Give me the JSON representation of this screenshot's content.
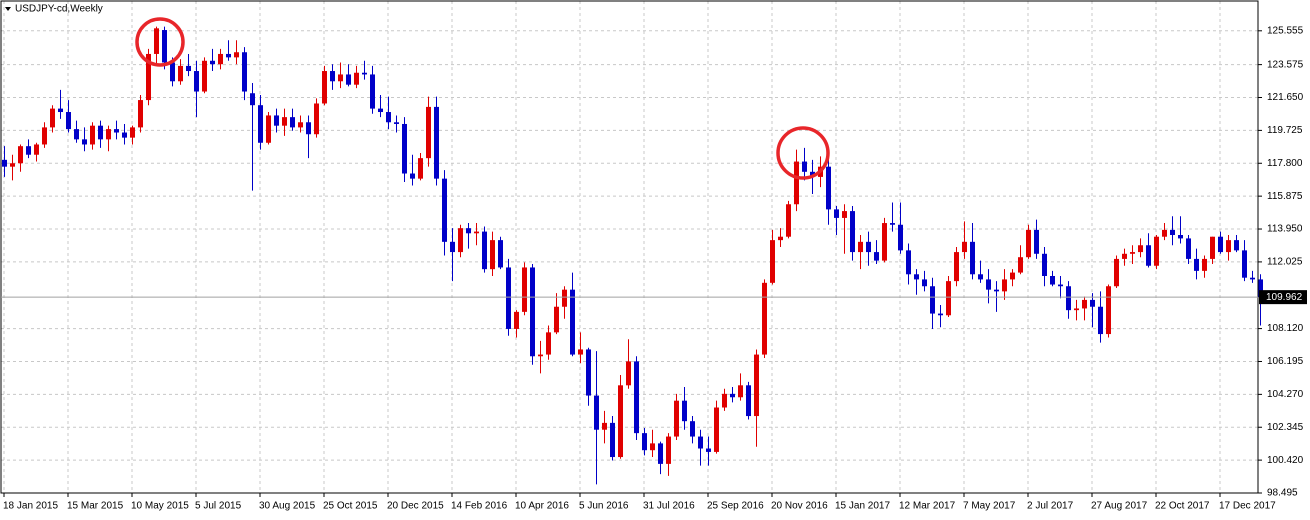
{
  "chart_data": {
    "type": "candlestick",
    "title": "USDJPY-cd,Weekly",
    "up_color": "#e00000",
    "down_color": "#0000c8",
    "grid": true,
    "ylim": [
      98.495,
      127.3
    ],
    "yticks": [
      125.555,
      123.575,
      {
        "value": 121.65,
        "label": "121.650"
      },
      119.725,
      {
        "value": 117.8,
        "label": "117.800"
      },
      115.875,
      {
        "value": 113.95,
        "label": "113.950"
      },
      112.025,
      {
        "value": 108.12,
        "label": "108.120"
      },
      106.195,
      {
        "value": 104.27,
        "label": "104.270"
      },
      102.345,
      {
        "value": 100.42,
        "label": "100.420"
      },
      98.495
    ],
    "categories": [
      "18 Jan 2015",
      null,
      null,
      null,
      null,
      null,
      null,
      null,
      "15 Mar 2015",
      null,
      null,
      null,
      null,
      null,
      null,
      null,
      "10 May 2015",
      null,
      null,
      null,
      null,
      null,
      null,
      null,
      "5 Jul 2015",
      null,
      null,
      null,
      null,
      null,
      null,
      null,
      "30 Aug 2015",
      null,
      null,
      null,
      null,
      null,
      null,
      null,
      "25 Oct 2015",
      null,
      null,
      null,
      null,
      null,
      null,
      null,
      "20 Dec 2015",
      null,
      null,
      null,
      null,
      null,
      null,
      null,
      "14 Feb 2016",
      null,
      null,
      null,
      null,
      null,
      null,
      null,
      "10 Apr 2016",
      null,
      null,
      null,
      null,
      null,
      null,
      null,
      "5 Jun 2016",
      null,
      null,
      null,
      null,
      null,
      null,
      null,
      "31 Jul 2016",
      null,
      null,
      null,
      null,
      null,
      null,
      null,
      "25 Sep 2016",
      null,
      null,
      null,
      null,
      null,
      null,
      null,
      "20 Nov 2016",
      null,
      null,
      null,
      null,
      null,
      null,
      null,
      "15 Jan 2017",
      null,
      null,
      null,
      null,
      null,
      null,
      null,
      "12 Mar 2017",
      null,
      null,
      null,
      null,
      null,
      null,
      null,
      "7 May 2017",
      null,
      null,
      null,
      null,
      null,
      null,
      null,
      "2 Jul 2017",
      null,
      null,
      null,
      null,
      null,
      null,
      null,
      "27 Aug 2017",
      null,
      null,
      null,
      null,
      null,
      null,
      null,
      "22 Oct 2017",
      null,
      null,
      null,
      null,
      null,
      null,
      null,
      "17 Dec 2017",
      null,
      null,
      null,
      null,
      null
    ],
    "open": [
      118.0,
      117.6,
      117.8,
      118.8,
      118.3,
      118.9,
      119.9,
      121.0,
      120.8,
      119.8,
      119.2,
      118.9,
      120.0,
      119.2,
      119.8,
      119.6,
      119.3,
      119.9,
      121.5,
      124.2,
      125.6,
      123.7,
      122.6,
      123.5,
      123.2,
      122.0,
      123.8,
      123.6,
      124.2,
      124.0,
      124.3,
      121.9,
      121.2,
      119.0,
      120.6,
      120.0,
      120.5,
      119.9,
      120.2,
      119.5,
      121.3,
      123.2,
      122.6,
      123.0,
      122.4,
      123.1,
      123.0,
      121.0,
      120.8,
      120.2,
      120.1,
      117.2,
      116.9,
      118.1,
      121.1,
      116.9,
      113.2,
      112.6,
      114.0,
      113.7,
      113.8,
      111.6,
      113.3,
      111.7,
      108.1,
      109.1,
      111.7,
      106.5,
      106.6,
      107.9,
      109.4,
      110.4,
      106.6,
      106.9,
      104.2,
      102.2,
      102.6,
      100.6,
      104.8,
      106.2,
      102.0,
      101.0,
      101.4,
      100.2,
      101.8,
      103.9,
      102.7,
      101.8,
      101.1,
      100.9,
      103.5,
      104.3,
      104.1,
      104.8,
      103.0,
      106.6,
      110.8,
      113.3,
      113.5,
      115.4,
      117.9,
      117.3,
      117.0,
      117.6,
      115.1,
      114.6,
      115.0,
      112.6,
      113.2,
      112.6,
      112.1,
      114.3,
      114.2,
      112.7,
      111.3,
      111.0,
      110.6,
      109.0,
      108.9,
      110.9,
      112.6,
      113.2,
      111.3,
      111.0,
      110.4,
      110.3,
      111.0,
      111.4,
      112.3,
      113.9,
      112.5,
      111.2,
      110.7,
      110.6,
      109.2,
      109.3,
      109.8,
      109.4,
      107.8,
      110.6,
      112.2,
      112.5,
      112.6,
      113.0,
      111.8,
      113.5,
      113.9,
      113.6,
      113.4,
      112.2,
      111.5,
      112.2,
      113.5,
      112.6,
      113.3,
      112.7,
      111.1,
      111.0
    ],
    "high": [
      118.8,
      118.3,
      118.9,
      119.2,
      119.0,
      120.2,
      121.2,
      122.1,
      121.5,
      120.3,
      119.9,
      120.2,
      120.3,
      120.0,
      120.3,
      120.1,
      120.0,
      121.8,
      124.5,
      125.8,
      125.8,
      124.0,
      123.9,
      124.2,
      123.8,
      124.0,
      124.5,
      124.5,
      125.0,
      125.0,
      124.6,
      122.5,
      121.8,
      120.8,
      121.0,
      121.0,
      121.0,
      120.6,
      120.6,
      121.6,
      123.5,
      123.6,
      123.7,
      123.6,
      123.5,
      123.8,
      123.5,
      121.8,
      121.7,
      120.6,
      120.5,
      118.3,
      118.4,
      121.7,
      121.7,
      117.4,
      114.0,
      114.2,
      114.3,
      114.3,
      114.1,
      113.8,
      113.5,
      112.2,
      109.2,
      112.0,
      111.9,
      107.4,
      108.3,
      110.2,
      110.6,
      111.4,
      107.9,
      107.0,
      106.8,
      103.3,
      103.0,
      105.4,
      107.5,
      106.5,
      102.3,
      102.2,
      101.5,
      102.0,
      104.3,
      104.7,
      103.0,
      102.2,
      101.8,
      103.9,
      104.6,
      104.7,
      105.5,
      105.0,
      106.9,
      111.0,
      113.9,
      114.0,
      115.6,
      118.6,
      118.7,
      118.0,
      118.2,
      118.6,
      115.3,
      115.4,
      115.3,
      113.6,
      113.8,
      113.3,
      114.6,
      115.5,
      115.5,
      113.1,
      111.6,
      111.5,
      111.1,
      109.5,
      111.2,
      112.9,
      114.4,
      114.3,
      112.1,
      111.6,
      110.9,
      111.6,
      111.6,
      113.0,
      114.2,
      114.5,
      112.9,
      111.5,
      111.2,
      110.9,
      109.8,
      110.0,
      110.2,
      110.3,
      110.7,
      112.4,
      112.8,
      113.0,
      113.4,
      113.7,
      113.6,
      114.3,
      114.7,
      114.7,
      113.6,
      112.8,
      112.4,
      113.5,
      113.8,
      113.6,
      113.6,
      113.3,
      111.5,
      111.3
    ],
    "low": [
      117.0,
      116.8,
      117.3,
      118.1,
      117.9,
      118.7,
      119.6,
      120.4,
      119.6,
      119.0,
      118.5,
      118.6,
      118.7,
      118.5,
      119.2,
      118.9,
      118.9,
      119.6,
      121.2,
      123.6,
      123.3,
      122.3,
      122.4,
      122.9,
      120.5,
      121.9,
      123.2,
      123.3,
      123.8,
      123.6,
      121.5,
      116.2,
      118.6,
      118.9,
      119.6,
      119.4,
      119.7,
      119.6,
      118.1,
      119.3,
      121.2,
      122.1,
      122.2,
      122.3,
      122.2,
      122.7,
      120.7,
      120.5,
      119.8,
      119.6,
      116.7,
      116.5,
      116.8,
      117.6,
      116.5,
      112.4,
      110.9,
      112.3,
      112.8,
      113.0,
      111.4,
      111.2,
      111.6,
      107.7,
      107.6,
      108.9,
      106.0,
      105.5,
      106.3,
      107.8,
      108.7,
      106.5,
      106.1,
      103.6,
      99.0,
      101.4,
      100.4,
      100.5,
      104.6,
      101.6,
      100.7,
      100.6,
      99.6,
      99.5,
      101.6,
      102.2,
      101.4,
      100.1,
      100.1,
      100.8,
      103.3,
      103.8,
      103.9,
      102.8,
      101.2,
      106.4,
      110.7,
      112.9,
      113.4,
      115.0,
      116.8,
      116.0,
      116.4,
      114.2,
      113.6,
      112.5,
      112.1,
      111.6,
      111.8,
      111.9,
      112.0,
      113.8,
      112.5,
      110.7,
      110.1,
      110.3,
      108.1,
      108.2,
      108.8,
      110.6,
      112.2,
      111.0,
      110.8,
      109.6,
      109.1,
      109.8,
      110.6,
      111.3,
      112.2,
      112.2,
      110.6,
      110.6,
      109.9,
      108.7,
      108.6,
      108.6,
      108.2,
      107.3,
      107.6,
      110.5,
      111.8,
      111.9,
      112.3,
      111.7,
      111.6,
      113.3,
      113.0,
      113.1,
      111.9,
      111.0,
      111.1,
      111.9,
      112.5,
      112.1,
      112.6,
      110.9,
      110.8,
      108.3
    ],
    "close": [
      117.6,
      117.8,
      118.8,
      118.3,
      118.9,
      119.9,
      121.0,
      120.8,
      119.8,
      119.2,
      118.9,
      120.0,
      119.2,
      119.8,
      119.6,
      119.3,
      119.9,
      121.5,
      124.2,
      125.7,
      123.7,
      122.6,
      123.5,
      123.2,
      122.0,
      123.8,
      123.6,
      124.2,
      124.0,
      124.3,
      122.0,
      121.2,
      119.0,
      120.6,
      120.0,
      120.5,
      119.9,
      120.2,
      119.5,
      121.3,
      123.2,
      122.6,
      123.0,
      122.4,
      123.1,
      123.0,
      121.0,
      120.8,
      120.2,
      120.1,
      117.2,
      116.9,
      118.1,
      121.1,
      116.9,
      113.2,
      112.6,
      114.0,
      113.7,
      113.8,
      111.6,
      113.3,
      111.7,
      108.1,
      109.1,
      111.7,
      106.5,
      106.6,
      107.9,
      109.4,
      110.4,
      106.6,
      106.9,
      104.2,
      102.2,
      102.6,
      100.6,
      104.8,
      106.2,
      102.0,
      101.0,
      101.4,
      100.2,
      101.8,
      103.9,
      102.7,
      101.8,
      101.1,
      100.9,
      103.5,
      104.3,
      104.1,
      104.8,
      103.0,
      106.6,
      110.8,
      113.3,
      113.5,
      115.4,
      117.9,
      117.3,
      117.0,
      117.6,
      115.1,
      114.6,
      115.0,
      112.6,
      113.2,
      112.6,
      112.1,
      114.3,
      114.2,
      112.7,
      111.3,
      111.0,
      110.6,
      109.0,
      108.9,
      110.9,
      112.6,
      113.2,
      111.3,
      111.0,
      110.4,
      110.3,
      111.0,
      111.4,
      112.3,
      113.9,
      112.5,
      111.2,
      110.7,
      110.6,
      109.2,
      109.3,
      109.8,
      109.4,
      107.8,
      110.6,
      112.2,
      112.5,
      112.6,
      113.0,
      111.8,
      113.5,
      113.9,
      113.6,
      113.4,
      112.2,
      111.5,
      112.2,
      113.5,
      112.6,
      113.3,
      112.7,
      111.1,
      111.0,
      109.962
    ]
  }
}
